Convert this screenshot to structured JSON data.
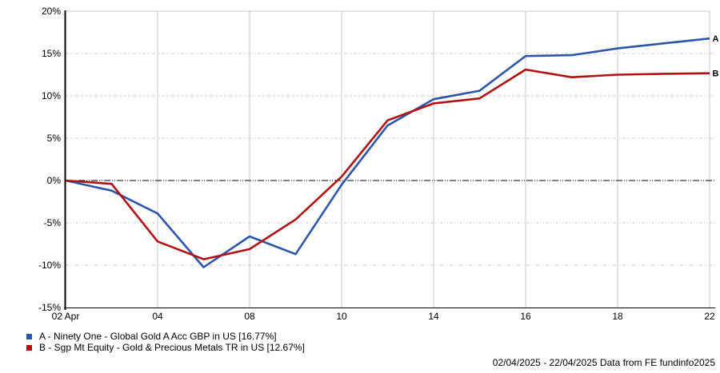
{
  "footer": {
    "text": "02/04/2025 - 22/04/2025 Data from FE fundinfo2025"
  },
  "chart_data": {
    "type": "line",
    "title": "",
    "x_unit": "dates in April 2025 (business days)",
    "x": [
      "02 Apr",
      "03",
      "04",
      "07",
      "08",
      "09",
      "10",
      "11",
      "14",
      "15",
      "16",
      "17",
      "18",
      "21",
      "22"
    ],
    "x_axis_ticks": [
      {
        "index": 0,
        "label": "02 Apr"
      },
      {
        "index": 2,
        "label": "04"
      },
      {
        "index": 4,
        "label": "08"
      },
      {
        "index": 6,
        "label": "10"
      },
      {
        "index": 8,
        "label": "14"
      },
      {
        "index": 10,
        "label": "16"
      },
      {
        "index": 12,
        "label": "18"
      },
      {
        "index": 14,
        "label": "22"
      }
    ],
    "ylim": [
      -15,
      20
    ],
    "y_ticks": [
      {
        "value": 20,
        "label": "20%"
      },
      {
        "value": 15,
        "label": "15%"
      },
      {
        "value": 10,
        "label": "10%"
      },
      {
        "value": 5,
        "label": "5%"
      },
      {
        "value": 0,
        "label": "0%"
      },
      {
        "value": -5,
        "label": "-5%"
      },
      {
        "value": -10,
        "label": "-10%"
      },
      {
        "value": -15,
        "label": "-15%"
      }
    ],
    "y_grid_values": [
      15,
      10,
      5,
      -5,
      -10
    ],
    "zero_line_value": 0,
    "grid": true,
    "legend_position": "bottom-left",
    "series": [
      {
        "letter": "A",
        "name": "A - Ninety One - Global Gold A Acc GBP in US [16.77%]",
        "color": "#2e56a8",
        "end_value_pct": 16.77,
        "values": [
          0,
          -1.2,
          -3.9,
          -10.25,
          -6.6,
          -8.7,
          -0.5,
          6.5,
          9.6,
          10.6,
          14.7,
          14.8,
          15.6,
          16.2,
          16.77
        ]
      },
      {
        "letter": "B",
        "name": "B - Sgp Mt Equity - Gold & Precious Metals TR in US [12.67%]",
        "color": "#b11112",
        "end_value_pct": 12.67,
        "values": [
          0,
          -0.4,
          -7.2,
          -9.3,
          -8.1,
          -4.6,
          0.45,
          7.1,
          9.1,
          9.7,
          13.1,
          12.2,
          12.5,
          12.6,
          12.67
        ]
      }
    ],
    "colors": {
      "grid": "#c8c8c8",
      "axis": "#000000",
      "zero_line": "#000000",
      "tick_text": "#000000",
      "end_label_text": "#000000"
    }
  }
}
